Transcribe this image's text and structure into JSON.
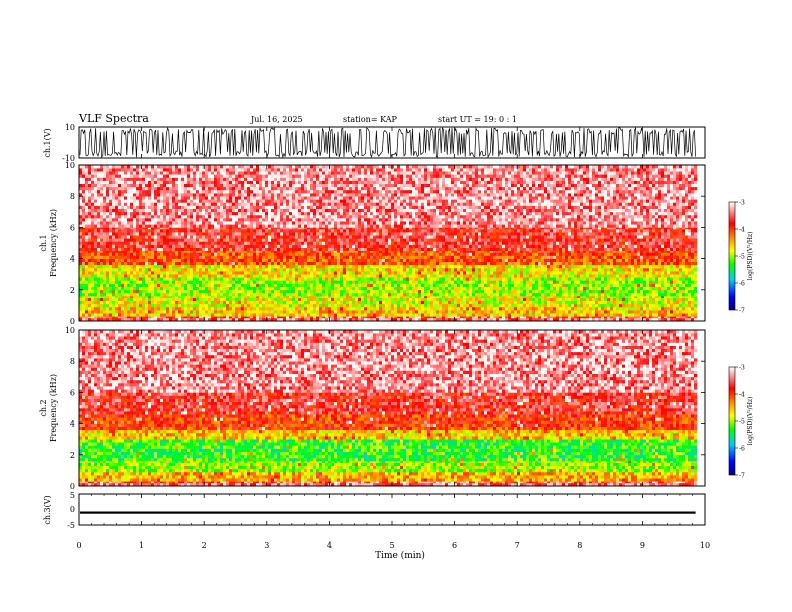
{
  "header": {
    "title": "VLF Spectra",
    "date": "Jul. 16, 2025",
    "station": "station= KAP",
    "start": "start UT =  19: 0 : 1"
  },
  "colors": {
    "waveform": "#000000",
    "colormap": [
      "#000080",
      "#0000ff",
      "#00c8ff",
      "#00ff00",
      "#ffff00",
      "#ff8000",
      "#ff0000",
      "#ffffff"
    ]
  },
  "chart_data": [
    {
      "type": "line",
      "panel": "ch1-waveform",
      "ylabel": "ch.1(V)",
      "ylim": [
        -10,
        10
      ],
      "yticks": [
        "10",
        "-10"
      ],
      "x_range_min": [
        0,
        9.85
      ],
      "description_values": {
        "typical_min": -9.5,
        "typical_max": 9.5
      }
    },
    {
      "type": "heatmap",
      "panel": "ch1-spectrogram",
      "ylabel": "ch.1\nFrequency (kHz)",
      "ylim": [
        0,
        10
      ],
      "yticks": [
        "0",
        "2",
        "4",
        "6",
        "8",
        "10"
      ],
      "x_range_min": [
        0,
        9.85
      ],
      "bands": [
        {
          "from_khz": 0.0,
          "to_khz": 0.3,
          "level": -3.5
        },
        {
          "from_khz": 0.3,
          "to_khz": 0.9,
          "level": -4.6
        },
        {
          "from_khz": 0.9,
          "to_khz": 1.6,
          "level": -4.8
        },
        {
          "from_khz": 1.6,
          "to_khz": 2.8,
          "level": -5.0
        },
        {
          "from_khz": 2.8,
          "to_khz": 3.6,
          "level": -4.7
        },
        {
          "from_khz": 3.6,
          "to_khz": 4.5,
          "level": -4.1
        },
        {
          "from_khz": 4.5,
          "to_khz": 6.0,
          "level": -3.7
        },
        {
          "from_khz": 6.0,
          "to_khz": 10.0,
          "level": -3.35
        }
      ],
      "colorbar": {
        "label": "log(PSD)(V²/Hz)",
        "ticks": [
          "-3",
          "-4",
          "-5",
          "-6",
          "-7"
        ],
        "range": [
          -7,
          -3
        ]
      }
    },
    {
      "type": "heatmap",
      "panel": "ch2-spectrogram",
      "ylabel": "ch.2\nFrequency (kHz)",
      "ylim": [
        0,
        10
      ],
      "yticks": [
        "0",
        "2",
        "4",
        "6",
        "8",
        "10"
      ],
      "x_range_min": [
        0,
        9.85
      ],
      "bands": [
        {
          "from_khz": 0.0,
          "to_khz": 0.3,
          "level": -3.5
        },
        {
          "from_khz": 0.3,
          "to_khz": 0.9,
          "level": -4.5
        },
        {
          "from_khz": 0.9,
          "to_khz": 1.6,
          "level": -5.0
        },
        {
          "from_khz": 1.6,
          "to_khz": 3.0,
          "level": -5.3
        },
        {
          "from_khz": 3.0,
          "to_khz": 3.6,
          "level": -4.6
        },
        {
          "from_khz": 3.6,
          "to_khz": 4.6,
          "level": -4.0
        },
        {
          "from_khz": 4.6,
          "to_khz": 6.0,
          "level": -3.7
        },
        {
          "from_khz": 6.0,
          "to_khz": 10.0,
          "level": -3.35
        }
      ],
      "colorbar": {
        "label": "log(PSD)(V²/Hz)",
        "ticks": [
          "-3",
          "-4",
          "-5",
          "-6",
          "-7"
        ],
        "range": [
          -7,
          -3
        ]
      }
    },
    {
      "type": "line",
      "panel": "ch3-waveform",
      "ylabel": "ch.3(V)",
      "ylim": [
        -5,
        5
      ],
      "yticks": [
        "5",
        "0",
        "-5"
      ],
      "x_range_min": [
        0,
        9.85
      ],
      "description_values": {
        "level": -1.0,
        "amplitude": 0.35
      }
    }
  ],
  "xaxis": {
    "label": "Time (min)",
    "xlim": [
      0,
      10
    ],
    "ticks": [
      "0",
      "1",
      "2",
      "3",
      "4",
      "5",
      "6",
      "7",
      "8",
      "9",
      "10"
    ]
  }
}
